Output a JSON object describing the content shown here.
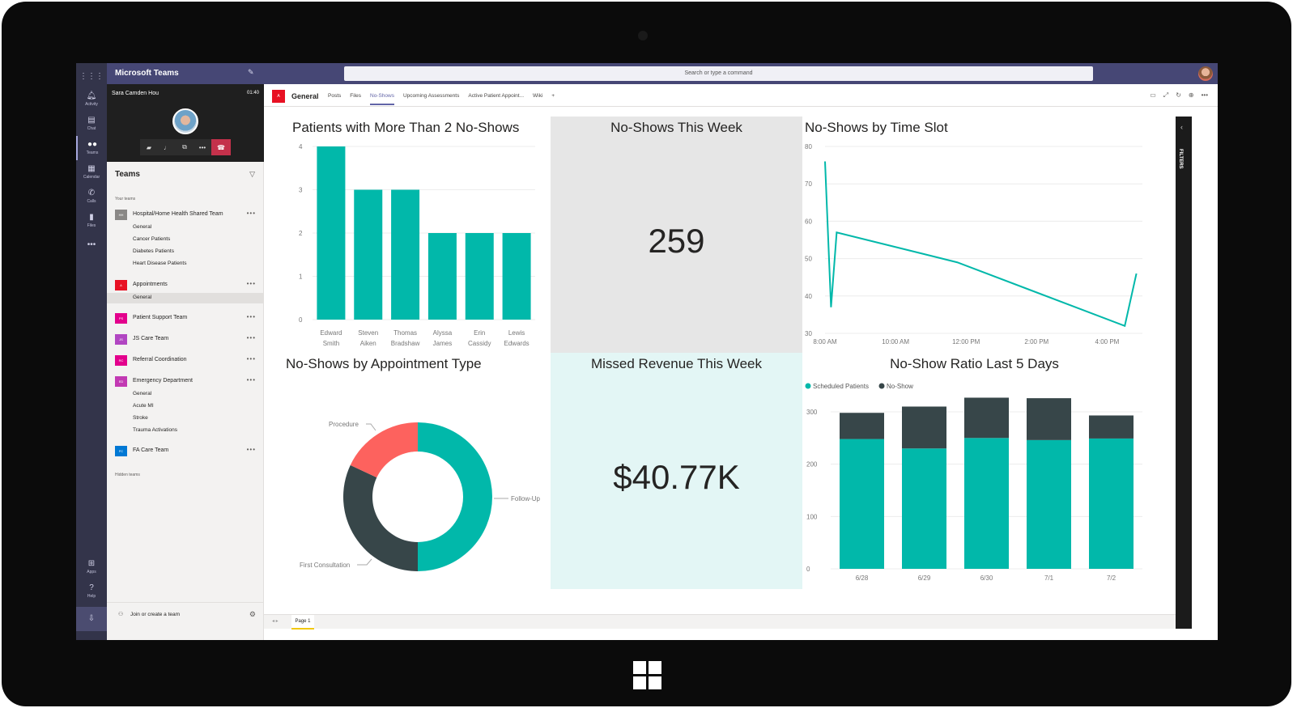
{
  "app": {
    "title": "Microsoft Teams",
    "search_placeholder": "Search or type a command"
  },
  "appbar": [
    {
      "label": "Activity",
      "icon": "bell-icon"
    },
    {
      "label": "Chat",
      "icon": "chat-icon"
    },
    {
      "label": "Teams",
      "icon": "teams-icon"
    },
    {
      "label": "Calendar",
      "icon": "calendar-icon"
    },
    {
      "label": "Calls",
      "icon": "phone-icon"
    },
    {
      "label": "Files",
      "icon": "files-icon"
    },
    {
      "label": "Apps",
      "icon": "apps-icon"
    },
    {
      "label": "Help",
      "icon": "help-icon"
    }
  ],
  "call": {
    "caller": "Sara Camden Hou",
    "duration": "01:40"
  },
  "teams_panel": {
    "heading": "Teams",
    "your_teams": "Your teams",
    "hidden_teams": "Hidden teams",
    "join": "Join or create a team",
    "teams": [
      {
        "name": "Hospital/Home Health Shared Team",
        "abbr": "HH",
        "color": "#8a8886",
        "channels": [
          "General",
          "Cancer Patients",
          "Diabetes Patients",
          "Heart Disease Patients"
        ]
      },
      {
        "name": "Appointments",
        "abbr": "A",
        "color": "#e81123",
        "channels": [
          "General"
        ]
      },
      {
        "name": "Patient Support Team",
        "abbr": "PS",
        "color": "#e3008c",
        "channels": []
      },
      {
        "name": "JS Care Team",
        "abbr": "JS",
        "color": "#b146c2",
        "channels": []
      },
      {
        "name": "Referral Coordination",
        "abbr": "RC",
        "color": "#e3008c",
        "channels": []
      },
      {
        "name": "Emergency Department",
        "abbr": "ED",
        "color": "#c239b3",
        "channels": [
          "General",
          "Acute MI",
          "Stroke",
          "Trauma Activations"
        ]
      },
      {
        "name": "FA Care Team",
        "abbr": "FC",
        "color": "#0078d4",
        "channels": []
      }
    ]
  },
  "channel": {
    "name": "General",
    "abbr": "A",
    "tabs": [
      "Posts",
      "Files",
      "No-Shows",
      "Upcoming Assessments",
      "Active Patient Appoint...",
      "Wiki",
      "+"
    ]
  },
  "report": {
    "page_label": "Page 1",
    "filters_label": "FILTERS",
    "card_noshows_title": "No-Shows This Week",
    "card_noshows_value": "259",
    "card_revenue_title": "Missed Revenue This Week",
    "card_revenue_value": "$40.77K"
  },
  "colors": {
    "teal": "#01b8aa",
    "dark": "#374649",
    "salmon": "#fd625e",
    "teams_purple": "#464775"
  },
  "chart_data": [
    {
      "type": "bar",
      "title": "Patients with More Than 2 No-Shows",
      "categories": [
        "Edward Smith",
        "Steven Aiken",
        "Thomas Bradshaw",
        "Alyssa James",
        "Erin Cassidy",
        "Lewis Edwards"
      ],
      "values": [
        4,
        3,
        3,
        2,
        2,
        2
      ],
      "ylim": [
        0,
        4
      ],
      "yticks": [
        0,
        1,
        2,
        3,
        4
      ]
    },
    {
      "type": "line",
      "title": "No-Shows by Time Slot",
      "x_ticks": [
        "8:00 AM",
        "10:00 AM",
        "12:00 PM",
        "2:00 PM",
        "4:00 PM"
      ],
      "x": [
        8.0,
        8.17,
        8.33,
        11.75,
        16.5,
        16.83
      ],
      "y": [
        76,
        37,
        57,
        49,
        32,
        46
      ],
      "ylim": [
        30,
        80
      ],
      "yticks": [
        30,
        40,
        50,
        60,
        70,
        80
      ]
    },
    {
      "type": "pie",
      "title": "No-Shows by Appointment Type",
      "slices": [
        {
          "label": "Follow-Up",
          "value": 50
        },
        {
          "label": "First Consultation",
          "value": 32
        },
        {
          "label": "Procedure",
          "value": 18
        }
      ]
    },
    {
      "type": "bar",
      "title": "No-Show Ratio Last 5 Days",
      "categories": [
        "6/28",
        "6/29",
        "6/30",
        "7/1",
        "7/2"
      ],
      "series": [
        {
          "name": "Scheduled Patients",
          "values": [
            248,
            230,
            250,
            246,
            249
          ]
        },
        {
          "name": "No-Show",
          "values": [
            50,
            80,
            77,
            80,
            44
          ]
        }
      ],
      "ylim": [
        0,
        320
      ],
      "yticks": [
        0,
        100,
        200,
        300
      ],
      "stacked": true
    }
  ]
}
